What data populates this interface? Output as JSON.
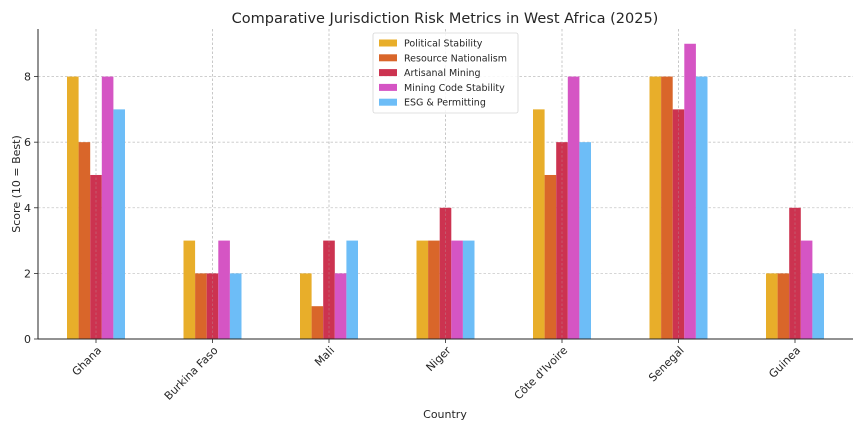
{
  "chart_data": {
    "type": "bar",
    "title": "Comparative Jurisdiction Risk Metrics in West Africa (2025)",
    "xlabel": "Country",
    "ylabel": "Score (10 = Best)",
    "categories": [
      "Ghana",
      "Burkina Faso",
      "Mali",
      "Niger",
      "Côte d'Ivoire",
      "Senegal",
      "Guinea"
    ],
    "ylim": [
      0,
      9.45
    ],
    "yticks": [
      "0",
      "2",
      "4",
      "6",
      "8"
    ],
    "grid": true,
    "legend_position": "top-center",
    "series": [
      {
        "name": "Political Stability",
        "color": "#E8AE2A",
        "values": [
          8,
          3,
          2,
          3,
          7,
          8,
          2
        ]
      },
      {
        "name": "Resource Nationalism",
        "color": "#D9662A",
        "values": [
          6,
          2,
          1,
          3,
          5,
          8,
          2
        ]
      },
      {
        "name": "Artisanal Mining",
        "color": "#CC3350",
        "values": [
          5,
          2,
          3,
          4,
          6,
          7,
          4
        ]
      },
      {
        "name": "Mining Code Stability",
        "color": "#D555C4",
        "values": [
          8,
          3,
          2,
          3,
          8,
          9,
          3
        ]
      },
      {
        "name": "ESG & Permitting",
        "color": "#6DBDF7",
        "values": [
          7,
          2,
          3,
          3,
          6,
          8,
          2
        ]
      }
    ]
  }
}
